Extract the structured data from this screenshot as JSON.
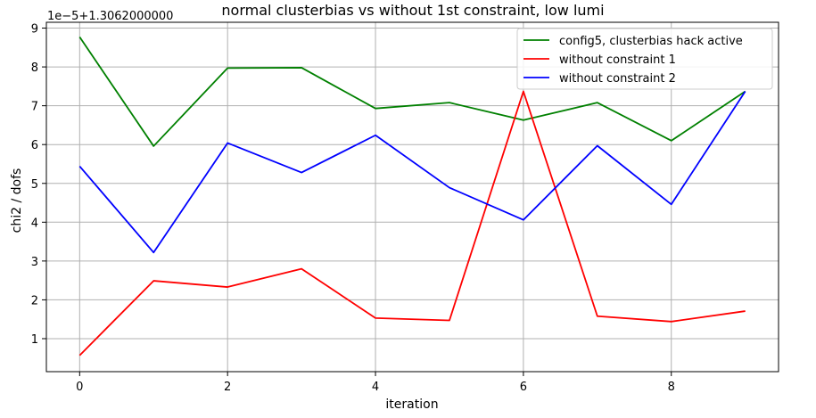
{
  "chart_data": {
    "type": "line",
    "title": "normal clusterbias vs without 1st constraint, low lumi",
    "xlabel": "iteration",
    "ylabel": "chi2 / dofs",
    "offset_label": "1e−5+1.3062000000",
    "xlim": [
      -0.45,
      9.45
    ],
    "ylim": [
      0.15,
      9.15
    ],
    "xticks": [
      0,
      2,
      4,
      6,
      8
    ],
    "yticks": [
      1,
      2,
      3,
      4,
      5,
      6,
      7,
      8,
      9
    ],
    "grid": true,
    "legend_position": "top-right",
    "x": [
      0,
      1,
      2,
      3,
      4,
      5,
      6,
      7,
      8,
      9
    ],
    "series": [
      {
        "name": "config5, clusterbias hack active",
        "color": "#008000",
        "values": [
          8.77,
          5.96,
          7.97,
          7.98,
          6.93,
          7.08,
          6.63,
          7.08,
          6.1,
          7.37
        ]
      },
      {
        "name": "without constraint 1",
        "color": "#ff0000",
        "values": [
          0.57,
          2.49,
          2.33,
          2.8,
          1.53,
          1.47,
          7.37,
          1.58,
          1.44,
          1.71
        ]
      },
      {
        "name": "without constraint 2",
        "color": "#0000ff",
        "values": [
          5.44,
          3.22,
          6.04,
          5.28,
          6.24,
          4.89,
          4.06,
          5.97,
          4.46,
          7.37
        ]
      }
    ]
  }
}
